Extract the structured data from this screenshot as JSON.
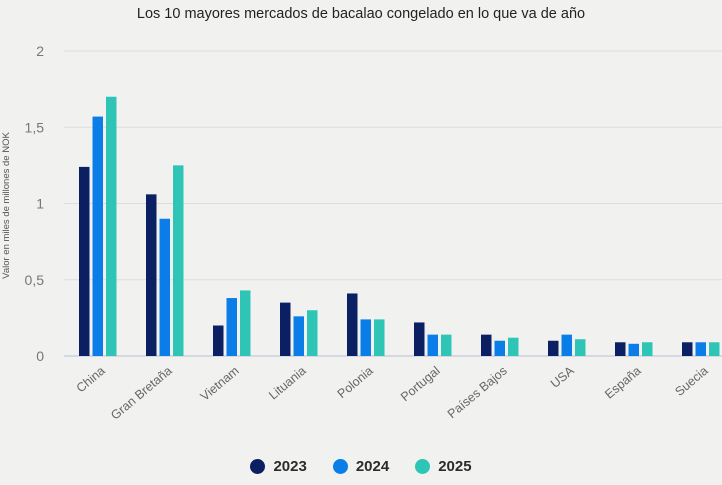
{
  "chart_data": {
    "type": "bar",
    "title": "Los 10 mayores mercados de bacalao congelado en lo que va de año",
    "xlabel": "",
    "ylabel": "Valor en miles de millones de NOK",
    "ylim": [
      0,
      2
    ],
    "yticks": [
      0,
      0.5,
      1,
      1.5,
      2
    ],
    "ytick_labels": [
      "0",
      "0,5",
      "1",
      "1,5",
      "2"
    ],
    "grid": true,
    "legend_position": "bottom-center",
    "categories": [
      "China",
      "Gran Bretaña",
      "Vietnam",
      "Lituania",
      "Polonia",
      "Portugal",
      "Países Bajos",
      "USA",
      "España",
      "Suecia"
    ],
    "series": [
      {
        "name": "2023",
        "color": "#0b1f63",
        "values": [
          1.24,
          1.06,
          0.2,
          0.35,
          0.41,
          0.22,
          0.14,
          0.1,
          0.09,
          0.09
        ]
      },
      {
        "name": "2024",
        "color": "#0a7de8",
        "values": [
          1.57,
          0.9,
          0.38,
          0.26,
          0.24,
          0.14,
          0.1,
          0.14,
          0.08,
          0.09
        ]
      },
      {
        "name": "2025",
        "color": "#2ec4b6",
        "values": [
          1.7,
          1.25,
          0.43,
          0.3,
          0.24,
          0.14,
          0.12,
          0.11,
          0.09,
          0.09
        ]
      }
    ]
  }
}
